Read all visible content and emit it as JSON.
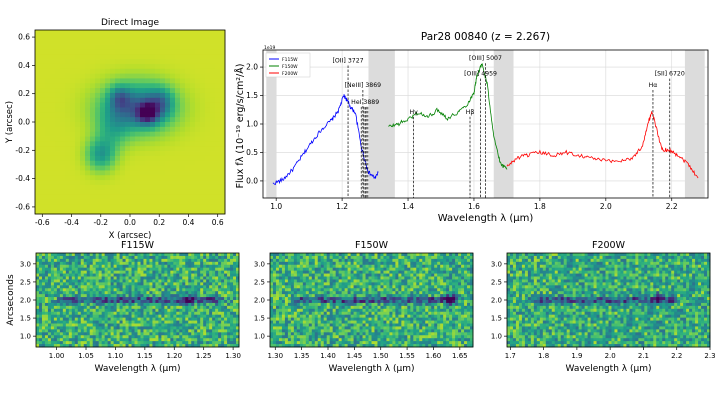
{
  "chart_data": [
    {
      "type": "heatmap",
      "title": "Direct Image",
      "xlabel": "X (arcsec)",
      "ylabel": "Y (arcsec)",
      "xlim": [
        -0.65,
        0.65
      ],
      "ylim": [
        -0.65,
        0.65
      ],
      "xticks": [
        "-0.6",
        "-0.4",
        "-0.2",
        "0.0",
        "0.2",
        "0.4",
        "0.6"
      ],
      "xtick_values": [
        -0.6,
        -0.4,
        -0.2,
        0.0,
        0.2,
        0.4,
        0.6
      ],
      "yticks": [
        "-0.6",
        "-0.4",
        "-0.2",
        "0.0",
        "0.2",
        "0.4",
        "0.6"
      ],
      "ytick_values": [
        -0.6,
        -0.4,
        -0.2,
        0.0,
        0.2,
        0.4,
        0.6
      ],
      "colormap": "viridis",
      "sources": [
        {
          "x": 0.05,
          "y": 0.1,
          "sx": 0.17,
          "sy": 0.12,
          "amp": 0.6
        },
        {
          "x": 0.12,
          "y": 0.06,
          "sx": 0.05,
          "sy": 0.05,
          "amp": 0.55
        },
        {
          "x": -0.07,
          "y": 0.17,
          "sx": 0.05,
          "sy": 0.06,
          "amp": 0.3
        },
        {
          "x": 0.21,
          "y": 0.14,
          "sx": 0.06,
          "sy": 0.07,
          "amp": 0.3
        },
        {
          "x": -0.2,
          "y": -0.23,
          "sx": 0.07,
          "sy": 0.08,
          "amp": 0.38
        },
        {
          "x": -0.12,
          "y": -0.06,
          "sx": 0.08,
          "sy": 0.1,
          "amp": 0.2
        }
      ]
    },
    {
      "type": "line",
      "title": "Par28 00840 (z = 2.267)",
      "xlabel": "Wavelength λ (μm)",
      "ylabel": "Flux fλ (10⁻¹⁹ erg/s/cm²/Å)",
      "offset_label": "1e19",
      "xlim": [
        0.96,
        2.31
      ],
      "ylim": [
        -0.3,
        2.3
      ],
      "xticks": [
        "1.0",
        "1.2",
        "1.4",
        "1.6",
        "1.8",
        "2.0",
        "2.2"
      ],
      "xtick_values": [
        1.0,
        1.2,
        1.4,
        1.6,
        1.8,
        2.0,
        2.2
      ],
      "yticks": [
        "0.0",
        "0.5",
        "1.0",
        "1.5",
        "2.0"
      ],
      "ytick_values": [
        0.0,
        0.5,
        1.0,
        1.5,
        2.0
      ],
      "grid": true,
      "legend_position": "top-left",
      "series": [
        {
          "name": "F115W",
          "color": "#0000ff",
          "x": [
            0.99,
            1.02,
            1.05,
            1.08,
            1.11,
            1.14,
            1.17,
            1.19,
            1.205,
            1.215,
            1.225,
            1.24,
            1.26,
            1.28,
            1.3,
            1.31
          ],
          "y": [
            -0.05,
            0.02,
            0.2,
            0.45,
            0.7,
            0.92,
            1.08,
            1.25,
            1.5,
            1.42,
            1.3,
            1.2,
            0.55,
            0.15,
            0.05,
            0.15
          ]
        },
        {
          "name": "F150W",
          "color": "#008000",
          "x": [
            1.34,
            1.37,
            1.4,
            1.43,
            1.46,
            1.49,
            1.52,
            1.55,
            1.58,
            1.6,
            1.61,
            1.625,
            1.64,
            1.66,
            1.68,
            1.7
          ],
          "y": [
            0.95,
            1.0,
            1.08,
            1.2,
            1.12,
            1.25,
            1.1,
            1.2,
            1.35,
            1.55,
            1.88,
            2.05,
            1.7,
            0.8,
            0.3,
            0.2
          ]
        },
        {
          "name": "F200W",
          "color": "#ff0000",
          "x": [
            1.7,
            1.73,
            1.76,
            1.8,
            1.84,
            1.88,
            1.92,
            1.96,
            2.0,
            2.04,
            2.08,
            2.11,
            2.13,
            2.14,
            2.155,
            2.17,
            2.19,
            2.22,
            2.25,
            2.28
          ],
          "y": [
            0.25,
            0.4,
            0.45,
            0.5,
            0.45,
            0.5,
            0.45,
            0.4,
            0.35,
            0.35,
            0.4,
            0.6,
            1.05,
            1.2,
            0.9,
            0.55,
            0.55,
            0.45,
            0.3,
            0.05
          ]
        }
      ],
      "shaded_bands": [
        [
          0.97,
          1.0
        ],
        [
          1.28,
          1.36
        ],
        [
          1.66,
          1.72
        ],
        [
          2.24,
          2.3
        ]
      ],
      "line_markers": [
        {
          "x": 1.218,
          "label": "[OII] 3727",
          "label_y": 2.08
        },
        {
          "x": 1.263,
          "label": "[NeIII] 3869",
          "label_y": 1.65
        },
        {
          "x": 1.27,
          "label": "HeI 3889",
          "label_y": 1.35
        },
        {
          "x": 1.417,
          "label": "Hγ",
          "label_y": 1.18
        },
        {
          "x": 1.588,
          "label": "Hβ",
          "label_y": 1.18
        },
        {
          "x": 1.62,
          "label": "[OIII] 4959",
          "label_y": 1.85
        },
        {
          "x": 1.635,
          "label": "[OIII] 5007",
          "label_y": 2.12
        },
        {
          "x": 2.143,
          "label": "Hα",
          "label_y": 1.65
        },
        {
          "x": 2.194,
          "label": "[SII] 6720",
          "label_y": 1.85
        }
      ],
      "extra_dashed": [
        1.258,
        1.266,
        1.273,
        1.278
      ]
    },
    {
      "type": "heatmap",
      "title": "F115W",
      "xlabel": "Wavelength λ (μm)",
      "ylabel": "Arcseconds",
      "xlim": [
        0.965,
        1.31
      ],
      "ylim": [
        0.7,
        3.3
      ],
      "xticks": [
        "1.00",
        "1.05",
        "1.10",
        "1.15",
        "1.20",
        "1.25",
        "1.30"
      ],
      "xtick_values": [
        1.0,
        1.05,
        1.1,
        1.15,
        1.2,
        1.25,
        1.3
      ],
      "yticks": [
        "1.0",
        "1.5",
        "2.0",
        "2.5",
        "3.0"
      ],
      "ytick_values": [
        1.0,
        1.5,
        2.0,
        2.5,
        3.0
      ],
      "trace": {
        "y": 2.0,
        "x_start": 1.0,
        "x_end": 1.285,
        "emission_x": 1.222,
        "emission_y": 1.98
      }
    },
    {
      "type": "heatmap",
      "title": "F150W",
      "xlabel": "Wavelength λ (μm)",
      "ylabel": "",
      "xlim": [
        1.29,
        1.675
      ],
      "ylim": [
        0.7,
        3.3
      ],
      "xticks": [
        "1.30",
        "1.35",
        "1.40",
        "1.45",
        "1.50",
        "1.55",
        "1.60",
        "1.65"
      ],
      "xtick_values": [
        1.3,
        1.35,
        1.4,
        1.45,
        1.5,
        1.55,
        1.6,
        1.65
      ],
      "yticks": [
        "1.0",
        "1.5",
        "2.0",
        "2.5",
        "3.0"
      ],
      "ytick_values": [
        1.0,
        1.5,
        2.0,
        2.5,
        3.0
      ],
      "trace": {
        "y": 2.0,
        "x_start": 1.33,
        "x_end": 1.65,
        "emission_x": 1.633,
        "emission_y": 2.02
      }
    },
    {
      "type": "heatmap",
      "title": "F200W",
      "xlabel": "Wavelength λ (μm)",
      "ylabel": "",
      "xlim": [
        1.69,
        2.3
      ],
      "ylim": [
        0.7,
        3.3
      ],
      "xticks": [
        "1.7",
        "1.8",
        "1.9",
        "2.0",
        "2.1",
        "2.2",
        "2.3"
      ],
      "xtick_values": [
        1.7,
        1.8,
        1.9,
        2.0,
        2.1,
        2.2,
        2.3
      ],
      "yticks": [
        "1.0",
        "1.5",
        "2.0",
        "2.5",
        "3.0"
      ],
      "ytick_values": [
        1.0,
        1.5,
        2.0,
        2.5,
        3.0
      ],
      "trace": {
        "y": 2.0,
        "x_start": 1.75,
        "x_end": 2.2,
        "emission_x": 2.145,
        "emission_y": 2.05
      }
    }
  ]
}
